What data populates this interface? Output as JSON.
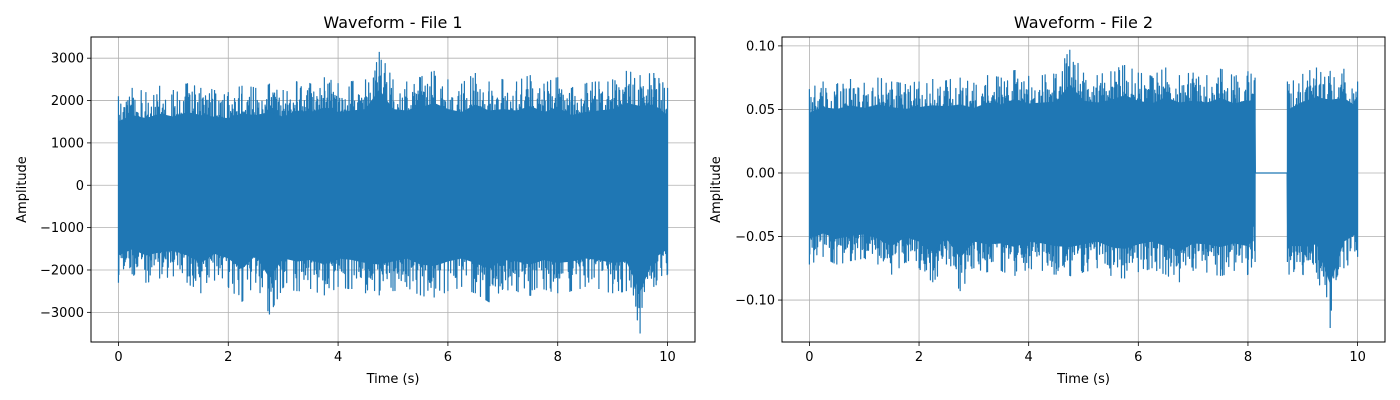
{
  "chart_data": [
    {
      "type": "line",
      "title": "Waveform - File 1",
      "xlabel": "Time (s)",
      "ylabel": "Amplitude",
      "xlim": [
        -0.5,
        10.5
      ],
      "ylim": [
        -3700,
        3500
      ],
      "xticks": [
        0,
        2,
        4,
        6,
        8,
        10
      ],
      "xtick_labels": [
        "0",
        "2",
        "4",
        "6",
        "8",
        "10"
      ],
      "yticks": [
        -3000,
        -2000,
        -1000,
        0,
        1000,
        2000,
        3000
      ],
      "ytick_labels": [
        "−3000",
        "−2000",
        "−1000",
        "0",
        "1000",
        "2000",
        "3000"
      ],
      "grid": true,
      "line_color": "#1f77b4",
      "series": [
        {
          "x": [
            0,
            0.25,
            0.5,
            0.75,
            1,
            1.25,
            1.5,
            1.75,
            2,
            2.25,
            2.5,
            2.75,
            3,
            3.25,
            3.5,
            3.75,
            4,
            4.25,
            4.5,
            4.75,
            5,
            5.25,
            5.5,
            5.75,
            6,
            6.25,
            6.5,
            6.75,
            7,
            7.25,
            7.5,
            7.75,
            8,
            8.25,
            8.5,
            8.75,
            9,
            9.25,
            9.5,
            9.75,
            10
          ],
          "upper": [
            2100,
            2300,
            2200,
            2350,
            2250,
            2400,
            2300,
            2250,
            2200,
            2350,
            2300,
            2400,
            2250,
            2450,
            2400,
            2550,
            2400,
            2450,
            2500,
            3150,
            2500,
            2450,
            2550,
            2700,
            2500,
            2400,
            2650,
            2450,
            2500,
            2450,
            2600,
            2400,
            2550,
            2300,
            2400,
            2450,
            2500,
            2700,
            2600,
            2650,
            2300
          ],
          "lower": [
            -2300,
            -2100,
            -2300,
            -2200,
            -2150,
            -2300,
            -2550,
            -2250,
            -2400,
            -2750,
            -2300,
            -3050,
            -2400,
            -2500,
            -2450,
            -2600,
            -2400,
            -2450,
            -2550,
            -2600,
            -2500,
            -2400,
            -2600,
            -2650,
            -2500,
            -2400,
            -2550,
            -2750,
            -2450,
            -2500,
            -2600,
            -2450,
            -2550,
            -2500,
            -2400,
            -2450,
            -2550,
            -2500,
            -3500,
            -2400,
            -2100
          ]
        }
      ]
    },
    {
      "type": "line",
      "title": "Waveform - File 2",
      "xlabel": "Time (s)",
      "ylabel": "Amplitude",
      "xlim": [
        -0.5,
        10.5
      ],
      "ylim": [
        -0.133,
        0.107
      ],
      "xticks": [
        0,
        2,
        4,
        6,
        8,
        10
      ],
      "xtick_labels": [
        "0",
        "2",
        "4",
        "6",
        "8",
        "10"
      ],
      "yticks": [
        -0.1,
        -0.05,
        0,
        0.05,
        0.1
      ],
      "ytick_labels": [
        "−0.10",
        "−0.05",
        "0.00",
        "0.05",
        "0.10"
      ],
      "grid": true,
      "line_color": "#1f77b4",
      "silence_interval": [
        8.13,
        8.72
      ],
      "series": [
        {
          "x": [
            0,
            0.25,
            0.5,
            0.75,
            1,
            1.25,
            1.5,
            1.75,
            2,
            2.25,
            2.5,
            2.75,
            3,
            3.25,
            3.5,
            3.75,
            4,
            4.25,
            4.5,
            4.75,
            5,
            5.25,
            5.5,
            5.75,
            6,
            6.25,
            6.5,
            6.75,
            7,
            7.25,
            7.5,
            7.75,
            8,
            8.13,
            8.72,
            8.75,
            9,
            9.25,
            9.5,
            9.75,
            10
          ],
          "upper": [
            0.066,
            0.072,
            0.07,
            0.074,
            0.071,
            0.075,
            0.072,
            0.07,
            0.072,
            0.074,
            0.073,
            0.075,
            0.071,
            0.077,
            0.075,
            0.081,
            0.076,
            0.077,
            0.078,
            0.097,
            0.079,
            0.077,
            0.08,
            0.085,
            0.079,
            0.076,
            0.083,
            0.077,
            0.079,
            0.077,
            0.082,
            0.076,
            0.08,
            0.075,
            0.072,
            0.07,
            0.078,
            0.083,
            0.08,
            0.082,
            0.072
          ],
          "lower": [
            -0.072,
            -0.066,
            -0.072,
            -0.069,
            -0.067,
            -0.072,
            -0.08,
            -0.07,
            -0.075,
            -0.086,
            -0.072,
            -0.093,
            -0.075,
            -0.078,
            -0.077,
            -0.081,
            -0.075,
            -0.077,
            -0.08,
            -0.081,
            -0.078,
            -0.075,
            -0.081,
            -0.083,
            -0.078,
            -0.075,
            -0.08,
            -0.086,
            -0.077,
            -0.078,
            -0.081,
            -0.077,
            -0.08,
            -0.07,
            -0.07,
            -0.08,
            -0.08,
            -0.078,
            -0.122,
            -0.075,
            -0.066
          ]
        }
      ]
    }
  ]
}
